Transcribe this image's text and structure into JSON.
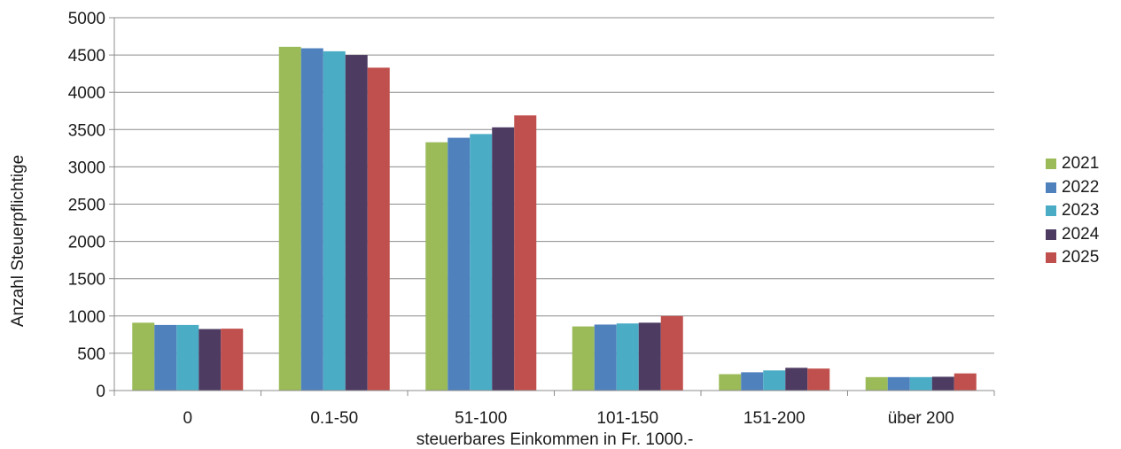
{
  "chart_data": {
    "type": "bar",
    "xlabel": "steuerbares Einkommen in Fr. 1000.-",
    "ylabel": "Anzahl Steuerpflichtige",
    "ylim": [
      0,
      5000
    ],
    "yticks": [
      0,
      500,
      1000,
      1500,
      2000,
      2500,
      3000,
      3500,
      4000,
      4500,
      5000
    ],
    "grid": true,
    "legend_position": "right",
    "categories": [
      "0",
      "0.1-50",
      "51-100",
      "101-150",
      "151-200",
      "über 200"
    ],
    "series": [
      {
        "name": "2021",
        "color": "#9BBB59",
        "values": [
          910,
          4610,
          3330,
          860,
          220,
          180
        ]
      },
      {
        "name": "2022",
        "color": "#4F81BD",
        "values": [
          880,
          4590,
          3390,
          885,
          245,
          180
        ]
      },
      {
        "name": "2023",
        "color": "#4BACC6",
        "values": [
          880,
          4550,
          3440,
          900,
          270,
          180
        ]
      },
      {
        "name": "2024",
        "color": "#4D3B62",
        "values": [
          825,
          4500,
          3530,
          910,
          305,
          185
        ]
      },
      {
        "name": "2025",
        "color": "#C0504D",
        "values": [
          830,
          4330,
          3690,
          1000,
          295,
          230
        ]
      }
    ]
  }
}
